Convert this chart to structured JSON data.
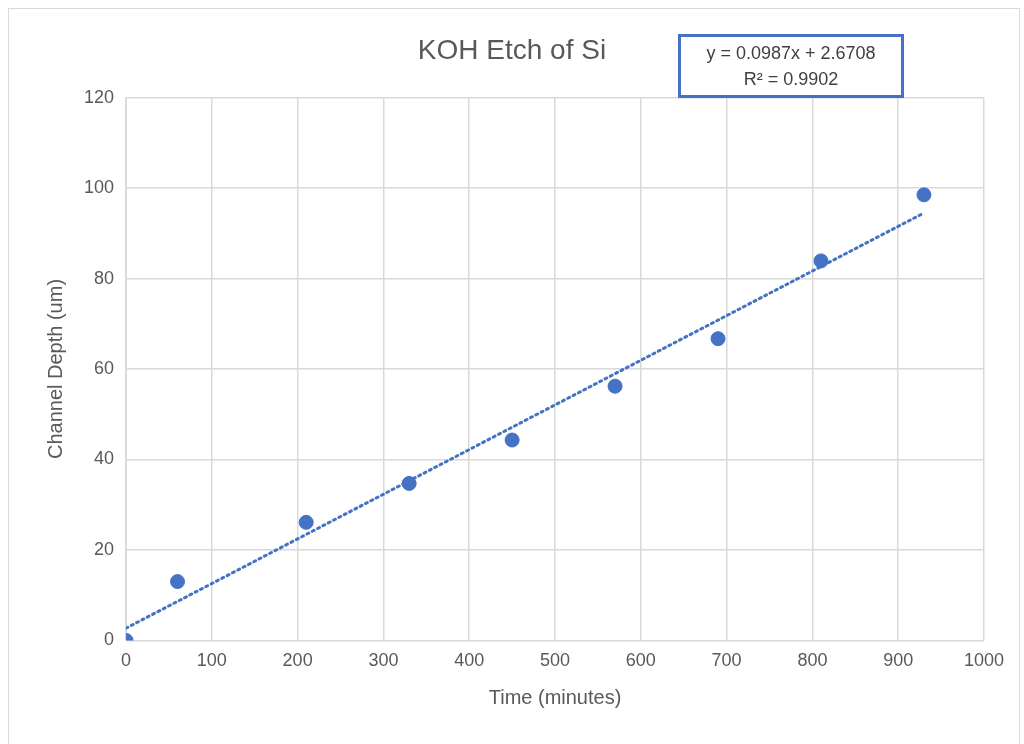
{
  "chart_data": {
    "type": "scatter",
    "title": "KOH Etch of Si",
    "xlabel": "Time (minutes)",
    "ylabel": "Channel Depth (um)",
    "xlim": [
      0,
      1000
    ],
    "xticks": [
      0,
      100,
      200,
      300,
      400,
      500,
      600,
      700,
      800,
      900,
      1000
    ],
    "ylim": [
      0,
      120
    ],
    "yticks": [
      0,
      20,
      40,
      60,
      80,
      100,
      120
    ],
    "grid": true,
    "legend": false,
    "marker": "circle",
    "series": [
      {
        "type": "scatter",
        "color": "#4472c4",
        "x": [
          0,
          60,
          210,
          330,
          450,
          570,
          690,
          810,
          930
        ],
        "values": [
          0,
          13,
          26.1,
          34.7,
          44.3,
          56.2,
          66.7,
          83.9,
          98.5
        ]
      },
      {
        "type": "line",
        "color": "#4472c4",
        "line_style": "dotted",
        "marker": "none",
        "x": [
          0,
          930
        ],
        "values": [
          2.7,
          94.5
        ]
      }
    ],
    "annotations": [
      "y = 0.0987x + 2.6708",
      "R² = 0.9902"
    ]
  }
}
